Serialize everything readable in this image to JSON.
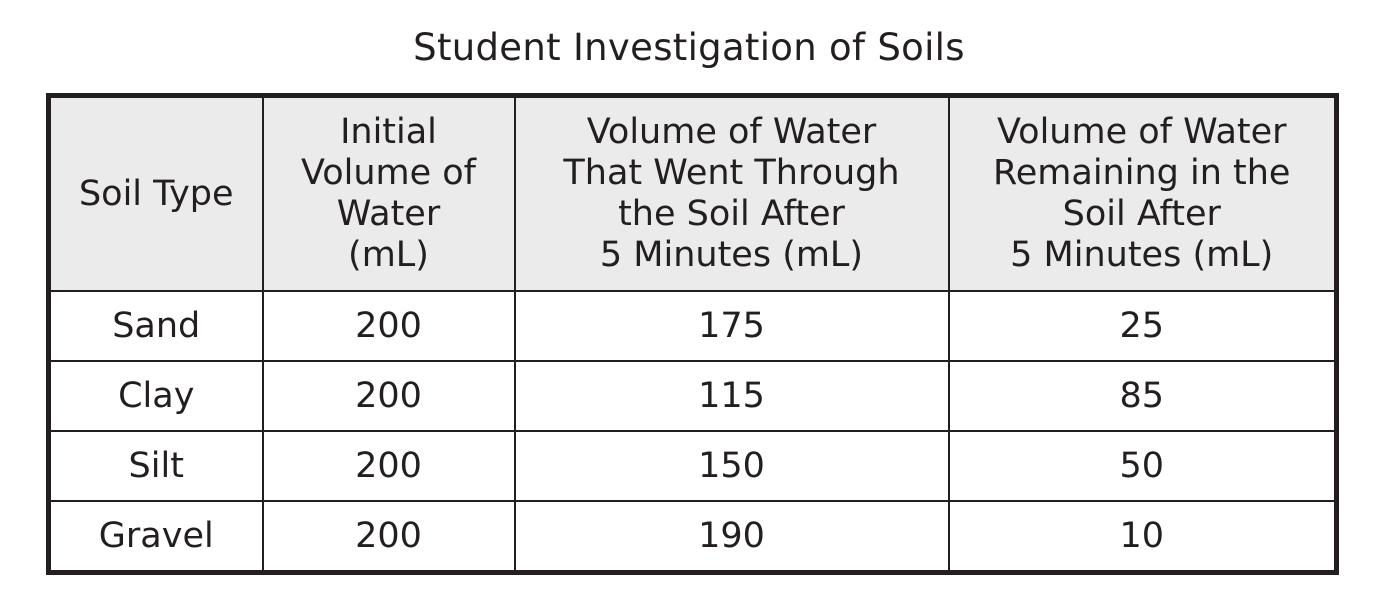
{
  "title": "Student Investigation of Soils",
  "table": {
    "headers": [
      "Soil Type",
      "Initial\nVolume of\nWater\n(mL)",
      "Volume of Water\nThat Went Through\nthe Soil After\n5 Minutes (mL)",
      "Volume of Water\nRemaining in the\nSoil After\n5 Minutes (mL)"
    ],
    "rows": [
      [
        "Sand",
        "200",
        "175",
        "25"
      ],
      [
        "Clay",
        "200",
        "115",
        "85"
      ],
      [
        "Silt",
        "200",
        "150",
        "50"
      ],
      [
        "Gravel",
        "200",
        "190",
        "10"
      ]
    ]
  }
}
